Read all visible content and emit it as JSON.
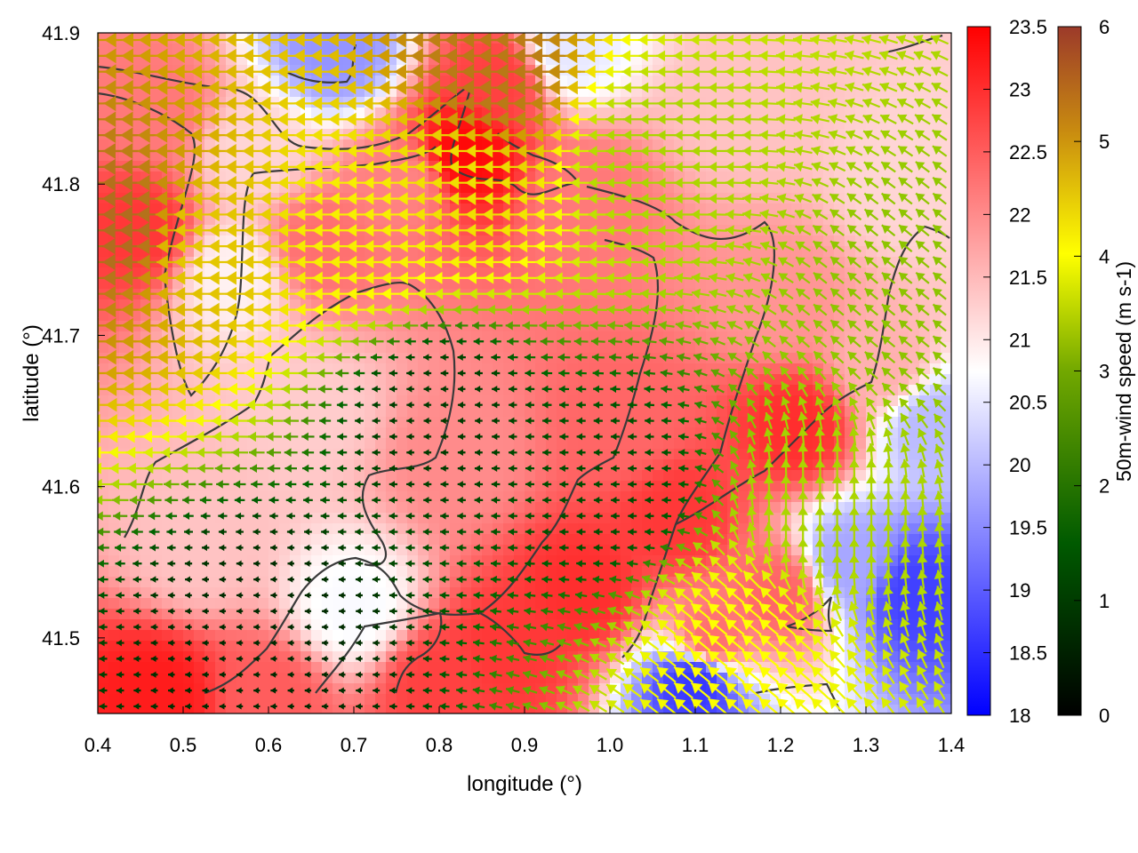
{
  "chart_data": {
    "type": "heatmap",
    "title": "",
    "xlabel": "longitude (°)",
    "ylabel": "latitude (°)",
    "xlim": [
      0.4,
      1.4
    ],
    "ylim": [
      41.45,
      41.9
    ],
    "xticks": [
      "0.4",
      "0.5",
      "0.6",
      "0.7",
      "0.8",
      "0.9",
      "1.0",
      "1.1",
      "1.2",
      "1.3",
      "1.4"
    ],
    "yticks": [
      "41.5",
      "41.6",
      "41.7",
      "41.8",
      "41.9"
    ],
    "temperature_colorbar": {
      "range": [
        18,
        23.5
      ],
      "ticks": [
        "18",
        "18.5",
        "19",
        "19.5",
        "20",
        "20.5",
        "21",
        "21.5",
        "22",
        "22.5",
        "23",
        "23.5"
      ],
      "colors": [
        "#0000ff",
        "#ffffff",
        "#ff0000"
      ]
    },
    "wind_colorbar": {
      "label": "50m-wind speed (m s-1)",
      "range": [
        0,
        6
      ],
      "ticks": [
        "0",
        "1",
        "2",
        "3",
        "4",
        "5",
        "6"
      ],
      "colors": [
        "#000000",
        "#006400",
        "#9acd00",
        "#ffff00",
        "#d2a000",
        "#a0522d"
      ]
    },
    "temperature_field": [
      {
        "lon": 0.45,
        "lat": 41.77,
        "value": 22.9
      },
      {
        "lon": 0.47,
        "lat": 41.85,
        "value": 22.2
      },
      {
        "lon": 0.56,
        "lat": 41.74,
        "value": 20.9
      },
      {
        "lon": 0.58,
        "lat": 41.82,
        "value": 21.2
      },
      {
        "lon": 0.66,
        "lat": 41.76,
        "value": 22.3
      },
      {
        "lon": 0.68,
        "lat": 41.89,
        "value": 19.6
      },
      {
        "lon": 0.76,
        "lat": 41.8,
        "value": 22.1
      },
      {
        "lon": 0.83,
        "lat": 41.82,
        "value": 23.4
      },
      {
        "lon": 0.87,
        "lat": 41.87,
        "value": 22.8
      },
      {
        "lon": 0.95,
        "lat": 41.89,
        "value": 20.5
      },
      {
        "lon": 0.97,
        "lat": 41.79,
        "value": 22.2
      },
      {
        "lon": 1.15,
        "lat": 41.85,
        "value": 21.4
      },
      {
        "lon": 1.2,
        "lat": 41.72,
        "value": 21.9
      },
      {
        "lon": 1.35,
        "lat": 41.8,
        "value": 21.2
      },
      {
        "lon": 0.65,
        "lat": 41.65,
        "value": 21.3
      },
      {
        "lon": 0.82,
        "lat": 41.62,
        "value": 22.0
      },
      {
        "lon": 1.02,
        "lat": 41.64,
        "value": 22.4
      },
      {
        "lon": 1.08,
        "lat": 41.58,
        "value": 22.9
      },
      {
        "lon": 1.22,
        "lat": 41.64,
        "value": 23.0
      },
      {
        "lon": 0.97,
        "lat": 41.53,
        "value": 23.0
      },
      {
        "lon": 0.88,
        "lat": 41.49,
        "value": 22.9
      },
      {
        "lon": 0.52,
        "lat": 41.56,
        "value": 21.4
      },
      {
        "lon": 0.7,
        "lat": 41.52,
        "value": 20.7
      },
      {
        "lon": 0.6,
        "lat": 41.46,
        "value": 22.5
      },
      {
        "lon": 0.47,
        "lat": 41.46,
        "value": 23.2
      },
      {
        "lon": 0.8,
        "lat": 41.47,
        "value": 22.8
      },
      {
        "lon": 1.12,
        "lat": 41.5,
        "value": 22.3
      },
      {
        "lon": 1.1,
        "lat": 41.47,
        "value": 18.6
      },
      {
        "lon": 1.2,
        "lat": 41.53,
        "value": 22.4
      },
      {
        "lon": 1.28,
        "lat": 41.55,
        "value": 19.8
      },
      {
        "lon": 1.36,
        "lat": 41.53,
        "value": 18.7
      },
      {
        "lon": 1.38,
        "lat": 41.64,
        "value": 20.0
      },
      {
        "lon": 1.32,
        "lat": 41.68,
        "value": 21.6
      }
    ],
    "wind_vectors": [
      {
        "lon": 0.44,
        "lat": 41.77,
        "speed": 5.6,
        "direction": "westward"
      },
      {
        "lon": 0.52,
        "lat": 41.76,
        "speed": 4.3,
        "direction": "westward"
      },
      {
        "lon": 0.72,
        "lat": 41.77,
        "speed": 3.8,
        "direction": "westward"
      },
      {
        "lon": 0.83,
        "lat": 41.8,
        "speed": 4.0,
        "direction": "westward"
      },
      {
        "lon": 0.87,
        "lat": 41.87,
        "speed": 5.4,
        "direction": "westward"
      },
      {
        "lon": 1.05,
        "lat": 41.82,
        "speed": 2.6,
        "direction": "westward"
      },
      {
        "lon": 1.35,
        "lat": 41.72,
        "speed": 2.3,
        "direction": "north-westward"
      },
      {
        "lon": 0.8,
        "lat": 41.65,
        "speed": 0.7,
        "direction": "westward"
      },
      {
        "lon": 1.0,
        "lat": 41.6,
        "speed": 0.9,
        "direction": "westward"
      },
      {
        "lon": 1.25,
        "lat": 41.58,
        "speed": 2.6,
        "direction": "northward"
      },
      {
        "lon": 1.15,
        "lat": 41.5,
        "speed": 3.6,
        "direction": "north-westward"
      },
      {
        "lon": 0.6,
        "lat": 41.5,
        "speed": 0.5,
        "direction": "westward"
      }
    ]
  }
}
